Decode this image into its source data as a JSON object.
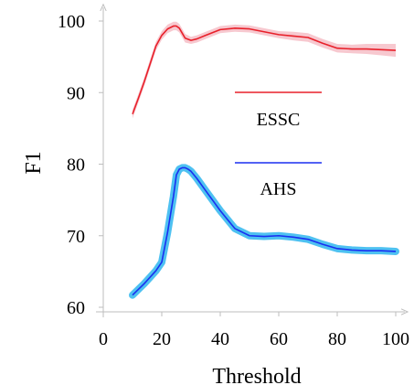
{
  "chart_data": {
    "type": "line",
    "title": "",
    "xlabel": "Threshold",
    "ylabel": "F1",
    "xlim": [
      0,
      100
    ],
    "ylim": [
      60,
      100
    ],
    "xticks": [
      0,
      20,
      40,
      60,
      80,
      100
    ],
    "yticks": [
      60,
      70,
      80,
      90,
      100
    ],
    "grid": false,
    "legend_position": "center",
    "series": [
      {
        "name": "ESSC",
        "color": "#e8202a",
        "band_color": "#f4b6bf",
        "x": [
          10,
          12,
          14,
          16,
          18,
          20,
          22,
          24,
          25,
          26,
          27,
          28,
          30,
          32,
          35,
          40,
          45,
          50,
          55,
          60,
          65,
          70,
          75,
          80,
          85,
          90,
          95,
          100
        ],
        "y": [
          87.0,
          89.2,
          91.5,
          94.0,
          96.5,
          98.0,
          98.9,
          99.3,
          99.3,
          99.0,
          98.3,
          97.6,
          97.3,
          97.5,
          98.0,
          98.8,
          99.0,
          98.9,
          98.5,
          98.1,
          97.9,
          97.7,
          96.9,
          96.2,
          96.1,
          96.1,
          96.0,
          95.9
        ],
        "band": [
          0.6,
          0.6,
          0.6,
          0.6,
          0.6,
          0.6,
          0.6,
          0.6,
          0.6,
          0.6,
          0.6,
          0.6,
          0.5,
          0.5,
          0.5,
          0.5,
          0.5,
          0.5,
          0.5,
          0.5,
          0.6,
          0.6,
          0.6,
          0.6,
          0.6,
          0.7,
          0.8,
          0.9
        ]
      },
      {
        "name": "AHS",
        "color": "#1a2ff0",
        "band_color": "#2fb6ee",
        "x": [
          10,
          12,
          14,
          16,
          18,
          20,
          22,
          24,
          25,
          26,
          27,
          28,
          29,
          30,
          32,
          35,
          40,
          45,
          50,
          55,
          60,
          65,
          70,
          75,
          80,
          85,
          90,
          95,
          100
        ],
        "y": [
          61.7,
          62.5,
          63.3,
          64.2,
          65.1,
          66.3,
          70.5,
          75.5,
          78.5,
          79.3,
          79.5,
          79.5,
          79.3,
          79.0,
          78.0,
          76.3,
          73.5,
          71.0,
          70.0,
          69.9,
          70.0,
          69.8,
          69.5,
          68.8,
          68.2,
          68.0,
          67.9,
          67.9,
          67.8
        ]
      }
    ]
  }
}
